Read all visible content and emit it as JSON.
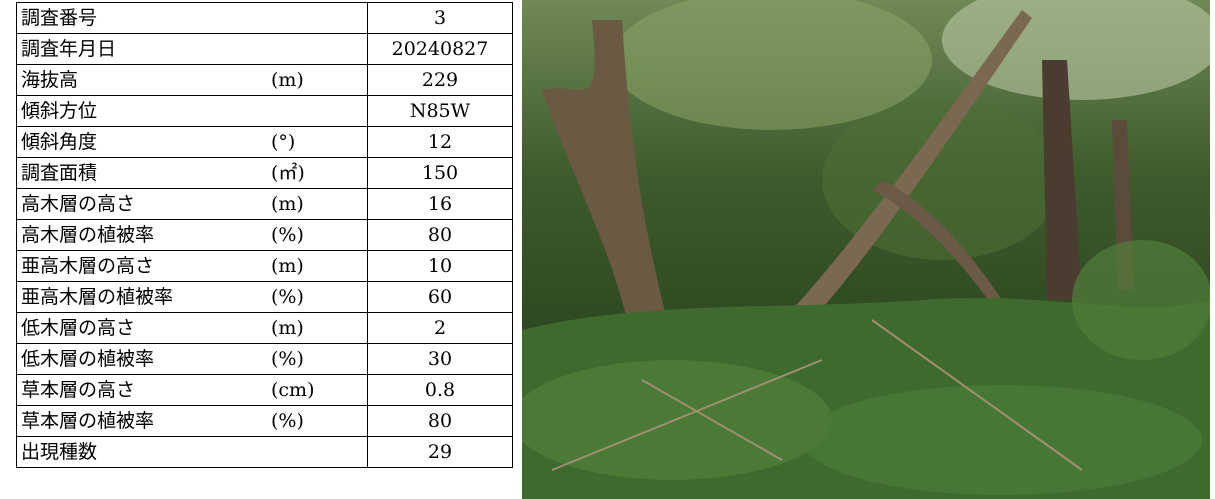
{
  "table": {
    "rows": [
      {
        "label": "調査番号",
        "value": "3"
      },
      {
        "label": "調査年月日",
        "value": "20240827"
      },
      {
        "label": "海抜高",
        "unit": "(m)",
        "value": "229"
      },
      {
        "label": "傾斜方位",
        "value": "N85W"
      },
      {
        "label": "傾斜角度",
        "unit": "(°)",
        "value": "12"
      },
      {
        "label": "調査面積",
        "unit": "(㎡)",
        "value": "150"
      },
      {
        "label": "高木層の高さ",
        "unit": "(m)",
        "value": "16"
      },
      {
        "label": "高木層の植被率",
        "unit": "(%)",
        "value": "80"
      },
      {
        "label": "亜高木層の高さ",
        "unit": "(m)",
        "value": "10"
      },
      {
        "label": "亜高木層の植被率",
        "unit": "(%)",
        "value": "60"
      },
      {
        "label": "低木層の高さ",
        "unit": "(m)",
        "value": "2"
      },
      {
        "label": "低木層の植被率",
        "unit": "(%)",
        "value": "30"
      },
      {
        "label": "草本層の高さ",
        "unit": "(cm)",
        "value": "0.8"
      },
      {
        "label": "草本層の植被率",
        "unit": "(%)",
        "value": "80"
      },
      {
        "label": "出現種数",
        "value": "29"
      }
    ]
  }
}
